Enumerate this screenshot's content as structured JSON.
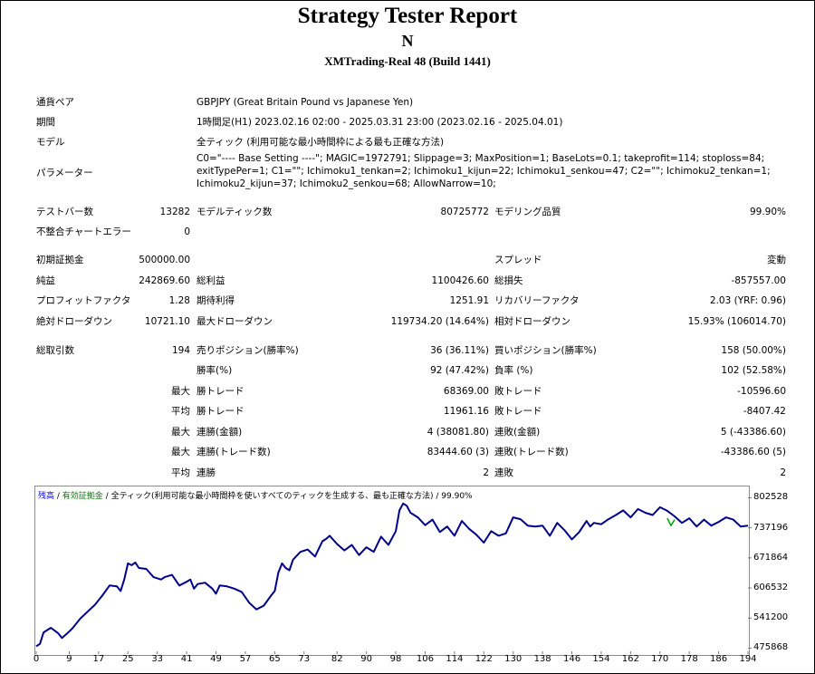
{
  "report": {
    "title": "Strategy Tester Report",
    "subtitle": "N",
    "server": "XMTrading-Real 48 (Build 1441)"
  },
  "settings": {
    "symbol_label": "通貨ペア",
    "symbol_value": "GBPJPY (Great Britain Pound vs Japanese Yen)",
    "period_label": "期間",
    "period_value": "1時間足(H1) 2023.02.16 02:00 - 2025.03.31 23:00 (2023.02.16 - 2025.04.01)",
    "model_label": "モデル",
    "model_value": "全ティック (利用可能な最小時間枠による最も正確な方法)",
    "params_label": "パラメーター",
    "params_value": "C0=\"---- Base Setting ----\"; MAGIC=1972791; Slippage=3; MaxPosition=1; BaseLots=0.1; takeprofit=114; stoploss=84; exitTypePer=1; C1=\"\"; Ichimoku1_tenkan=2; Ichimoku1_kijun=22; Ichimoku1_senkou=47; C2=\"\"; Ichimoku2_tenkan=1; Ichimoku2_kijun=37; Ichimoku2_senkou=68; AllowNarrow=10;"
  },
  "quality": {
    "bars_label": "テストバー数",
    "bars_value": "13282",
    "ticks_label": "モデルティック数",
    "ticks_value": "80725772",
    "modeling_label": "モデリング品質",
    "modeling_value": "99.90%",
    "errors_label": "不整合チャートエラー",
    "errors_value": "0"
  },
  "results": {
    "deposit_label": "初期証拠金",
    "deposit_value": "500000.00",
    "spread_label": "スプレッド",
    "spread_value": "変動",
    "net_label": "純益",
    "net_value": "242869.60",
    "gross_profit_label": "総利益",
    "gross_profit_value": "1100426.60",
    "gross_loss_label": "総損失",
    "gross_loss_value": "-857557.00",
    "pf_label": "プロフィットファクタ",
    "pf_value": "1.28",
    "payoff_label": "期待利得",
    "payoff_value": "1251.91",
    "rf_label": "リカバリーファクタ",
    "rf_value": "2.03 (YRF: 0.96)",
    "abs_dd_label": "絶対ドローダウン",
    "abs_dd_value": "10721.10",
    "max_dd_label": "最大ドローダウン",
    "max_dd_value": "119734.20 (14.64%)",
    "rel_dd_label": "相対ドローダウン",
    "rel_dd_value": "15.93% (106014.70)"
  },
  "trades": {
    "total_label": "総取引数",
    "total_value": "194",
    "short_label": "売りポジション(勝率%)",
    "short_value": "36 (36.11%)",
    "long_label": "買いポジション(勝率%)",
    "long_value": "158 (50.00%)",
    "win_label": "勝率(%)",
    "win_value": "92 (47.42%)",
    "loss_label": "負率 (%)",
    "loss_value": "102 (52.58%)",
    "max_word": "最大",
    "avg_word": "平均",
    "largest_win_label": "勝トレード",
    "largest_win_value": "68369.00",
    "largest_loss_label": "敗トレード",
    "largest_loss_value": "-10596.60",
    "avg_win_label": "勝トレード",
    "avg_win_value": "11961.16",
    "avg_loss_label": "敗トレード",
    "avg_loss_value": "-8407.42",
    "max_consec_wins_label": "連勝(金額)",
    "max_consec_wins_value": "4 (38081.80)",
    "max_consec_losses_label": "連敗(金額)",
    "max_consec_losses_value": "5 (-43386.60)",
    "max_consec_profit_label": "連勝(トレード数)",
    "max_consec_profit_value": "83444.60 (3)",
    "max_consec_loss_label": "連敗(トレード数)",
    "max_consec_loss_value": "-43386.60 (5)",
    "avg_consec_wins_label": "連勝",
    "avg_consec_wins_value": "2",
    "avg_consec_losses_label": "連敗",
    "avg_consec_losses_value": "2"
  },
  "legend": {
    "balance": "残高",
    "sep": " / ",
    "equity": "有効証拠金",
    "model": "全ティック(利用可能な最小時間枠を使いすべてのティックを生成する、最も正確な方法)",
    "quality": "99.90%"
  },
  "colors": {
    "balance": "#00008b",
    "equity": "#00a000",
    "text_blue": "#0000ff",
    "text_green": "#008000"
  },
  "chart_data": {
    "type": "line",
    "xlabel": "",
    "ylabel": "",
    "x_ticks": [
      0,
      9,
      17,
      25,
      33,
      41,
      49,
      57,
      65,
      73,
      82,
      90,
      98,
      106,
      114,
      122,
      130,
      138,
      146,
      154,
      162,
      170,
      178,
      186,
      194
    ],
    "y_ticks": [
      475868,
      541200,
      606532,
      671864,
      737196,
      802528
    ],
    "xlim": [
      0,
      194
    ],
    "ylim": [
      463000,
      827000
    ],
    "series": [
      {
        "name": "残高",
        "color": "#00008b",
        "x": [
          0,
          1,
          2,
          4,
          6,
          7,
          9,
          10,
          12,
          14,
          16,
          18,
          20,
          22,
          23,
          24,
          25,
          26,
          27,
          28,
          30,
          32,
          34,
          35,
          37,
          39,
          41,
          42,
          43,
          44,
          46,
          48,
          49,
          50,
          52,
          54,
          56,
          58,
          60,
          62,
          64,
          65,
          66,
          67,
          68,
          69,
          70,
          72,
          74,
          76,
          78,
          79,
          80,
          82,
          84,
          86,
          88,
          90,
          92,
          94,
          96,
          98,
          99,
          100,
          101,
          102,
          104,
          106,
          108,
          110,
          112,
          114,
          116,
          118,
          120,
          122,
          124,
          126,
          128,
          130,
          132,
          134,
          136,
          138,
          140,
          142,
          144,
          146,
          148,
          150,
          151,
          152,
          154,
          156,
          158,
          160,
          162,
          164,
          166,
          168,
          170,
          172,
          174,
          176,
          178,
          180,
          182,
          184,
          186,
          188,
          190,
          192,
          194
        ],
        "y": [
          480000,
          485000,
          510000,
          520000,
          508000,
          498000,
          512000,
          520000,
          540000,
          555000,
          570000,
          590000,
          612000,
          610000,
          600000,
          625000,
          660000,
          656000,
          662000,
          650000,
          648000,
          630000,
          625000,
          630000,
          635000,
          612000,
          620000,
          625000,
          605000,
          615000,
          618000,
          605000,
          594000,
          612000,
          610000,
          605000,
          598000,
          575000,
          560000,
          568000,
          590000,
          600000,
          640000,
          660000,
          650000,
          645000,
          668000,
          685000,
          690000,
          675000,
          708000,
          713000,
          720000,
          702000,
          688000,
          700000,
          678000,
          695000,
          685000,
          718000,
          700000,
          730000,
          775000,
          790000,
          785000,
          770000,
          760000,
          743000,
          755000,
          728000,
          740000,
          720000,
          752000,
          735000,
          722000,
          705000,
          730000,
          720000,
          725000,
          760000,
          756000,
          742000,
          740000,
          742000,
          720000,
          748000,
          732000,
          712000,
          728000,
          752000,
          740000,
          748000,
          745000,
          756000,
          765000,
          775000,
          760000,
          778000,
          770000,
          765000,
          782000,
          774000,
          762000,
          748000,
          758000,
          740000,
          755000,
          742000,
          750000,
          760000,
          755000,
          740000,
          742000
        ]
      },
      {
        "name": "有効証拠金",
        "color": "#00a000",
        "x": [
          172,
          173,
          174
        ],
        "y": [
          758000,
          742000,
          755000
        ]
      }
    ]
  }
}
